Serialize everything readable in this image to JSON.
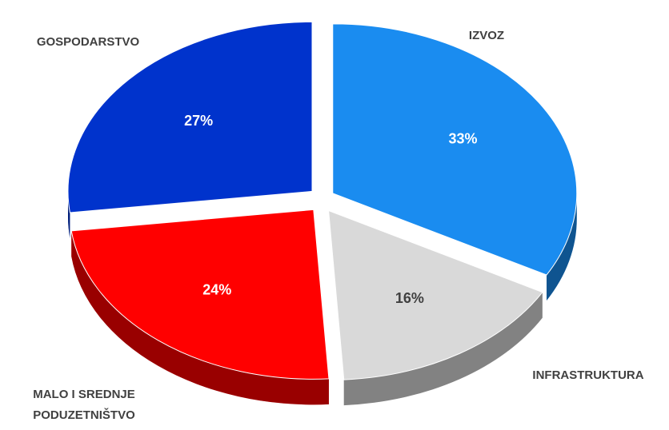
{
  "chart_data": {
    "type": "pie",
    "categories": [
      "IZVOZ",
      "INFRASTRUKTURA",
      "MALO I SREDNJE PODUZETNIŠTVO",
      "GOSPODARSTVO"
    ],
    "values": [
      33,
      16,
      24,
      27
    ],
    "value_labels": [
      "33%",
      "16%",
      "24%",
      "27%"
    ],
    "colors": [
      "#1a8cf0",
      "#d9d9d9",
      "#ff0000",
      "#0033cc"
    ]
  }
}
